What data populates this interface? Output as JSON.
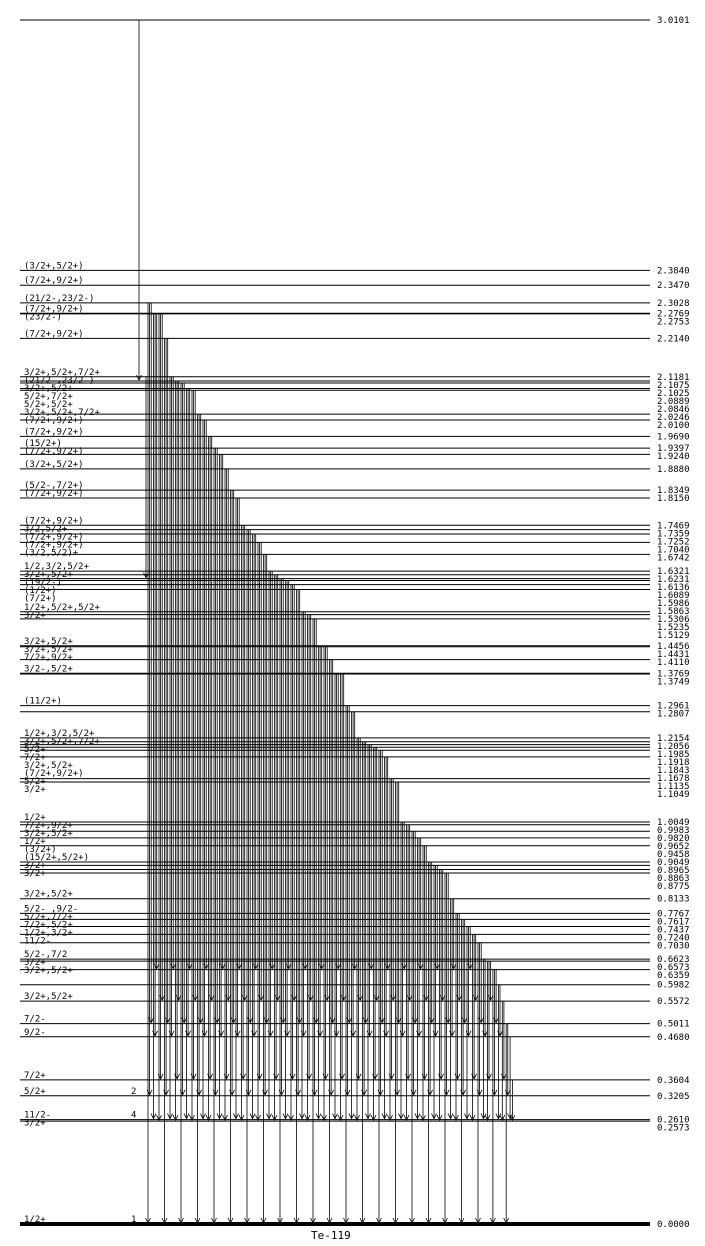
{
  "nucleus": "Te-119",
  "levels": [
    {
      "energy": "3.0101",
      "spin": ""
    },
    {
      "energy": "2.3840",
      "spin": "(3/2+,5/2+)"
    },
    {
      "energy": "2.3470",
      "spin": "(7/2+,9/2+)"
    },
    {
      "energy": "2.3028",
      "spin": "(21/2-,23/2-)"
    },
    {
      "energy": "2.2769",
      "spin": "(7/2+,9/2+)"
    },
    {
      "energy": "2.2753",
      "spin": "(23/2-)"
    },
    {
      "energy": "2.2140",
      "spin": "(7/2+,9/2+)"
    },
    {
      "energy": "2.1181",
      "spin": "3/2+,5/2+,7/2+"
    },
    {
      "energy": "2.1075",
      "spin": "(21/2-,23/2-)"
    },
    {
      "energy": "2.1025",
      "spin": "3/2+,5/2+"
    },
    {
      "energy": "2.0889",
      "spin": "5/2+,7/2+"
    },
    {
      "energy": "2.0846",
      "spin": "5/2+,5/2+"
    },
    {
      "energy": "2.0246",
      "spin": "3/2+,5/2+,7/2+"
    },
    {
      "energy": "2.0100",
      "spin": "(7/2+,9/2+)"
    },
    {
      "energy": "1.9690",
      "spin": "(7/2+,9/2+)"
    },
    {
      "energy": "1.9397",
      "spin": "(15/2+)"
    },
    {
      "energy": "1.9240",
      "spin": "(7/2+,9/2+)"
    },
    {
      "energy": "1.8880",
      "spin": "(3/2+,5/2+)"
    },
    {
      "energy": "1.8349",
      "spin": "(5/2-,7/2+)"
    },
    {
      "energy": "1.8150",
      "spin": "(7/2+,9/2+)"
    },
    {
      "energy": "1.7469",
      "spin": "(7/2+,9/2+)"
    },
    {
      "energy": "1.7359",
      "spin": "3/2,5/2+"
    },
    {
      "energy": "1.7252",
      "spin": "(7/2+,9/2+)"
    },
    {
      "energy": "1.7040",
      "spin": "(7/2+,9/2+)"
    },
    {
      "energy": "1.6742",
      "spin": "(3/2,5/2)+"
    },
    {
      "energy": "1.6321",
      "spin": "1/2,3/2,5/2+"
    },
    {
      "energy": "1.6231",
      "spin": "3/2+,5/2+"
    },
    {
      "energy": "1.6136",
      "spin": "(19/2-)"
    },
    {
      "energy": "1.6089",
      "spin": "(1/2+)"
    },
    {
      "energy": "1.5986",
      "spin": "(7/2+)"
    },
    {
      "energy": "1.5863",
      "spin": ""
    },
    {
      "energy": "1.5306",
      "spin": "1/2+,5/2+,5/2+"
    },
    {
      "energy": "1.5235",
      "spin": "3/2+"
    },
    {
      "energy": "1.5129",
      "spin": ""
    },
    {
      "energy": "1.4456",
      "spin": "3/2+,5/2+"
    },
    {
      "energy": "1.4431",
      "spin": "3/2+,5/2+"
    },
    {
      "energy": "1.4110",
      "spin": "7/2+,9/2+"
    },
    {
      "energy": "1.3769",
      "spin": "3/2-,5/2+"
    },
    {
      "energy": "1.3749",
      "spin": ""
    },
    {
      "energy": "1.2961",
      "spin": "(11/2+)"
    },
    {
      "energy": "1.2807",
      "spin": ""
    },
    {
      "energy": "1.2154",
      "spin": "1/2+,3/2,5/2+"
    },
    {
      "energy": "1.2056",
      "spin": "3/2+,5/2+,7/2+"
    },
    {
      "energy": "1.1985",
      "spin": "5/2+"
    },
    {
      "energy": "1.1918",
      "spin": "7/2+"
    },
    {
      "energy": "1.1843",
      "spin": "3/2+,5/2+"
    },
    {
      "energy": "1.1678",
      "spin": "(7/2+,9/2+)"
    },
    {
      "energy": "1.1135",
      "spin": "5/2+"
    },
    {
      "energy": "1.1049",
      "spin": "3/2+"
    },
    {
      "energy": "1.0049",
      "spin": "1/2+"
    },
    {
      "energy": "0.9983",
      "spin": "7/2+,9/2+"
    },
    {
      "energy": "0.9820",
      "spin": "3/2+,5/2+"
    },
    {
      "energy": "0.9652",
      "spin": "1/2+"
    },
    {
      "energy": "0.9458",
      "spin": "(3/2+)"
    },
    {
      "energy": "0.9049",
      "spin": "(15/2+,5/2+)"
    },
    {
      "energy": "0.8965",
      "spin": "3/2+"
    },
    {
      "energy": "0.8863",
      "spin": "3/2+"
    },
    {
      "energy": "0.8775",
      "spin": ""
    },
    {
      "energy": "0.8133",
      "spin": "3/2+,5/2+"
    },
    {
      "energy": "0.7767",
      "spin": "5/2- ,9/2-"
    },
    {
      "energy": "0.7617",
      "spin": "5/2+,7/2+"
    },
    {
      "energy": "0.7437",
      "spin": "7/2+,5/2+"
    },
    {
      "energy": "0.7240",
      "spin": "1/2+,3/2+"
    },
    {
      "energy": "0.7030",
      "spin": "11/2-"
    },
    {
      "energy": "0.6623",
      "spin": "5/2-,7/2"
    },
    {
      "energy": "0.6573",
      "spin": "3/2+"
    },
    {
      "energy": "0.6359",
      "spin": "3/2+,5/2+"
    },
    {
      "energy": "0.5982",
      "spin": ""
    },
    {
      "energy": "0.5572",
      "spin": "3/2+,5/2+"
    },
    {
      "energy": "0.5011",
      "spin": "7/2-"
    },
    {
      "energy": "0.4680",
      "spin": "9/2-"
    },
    {
      "energy": "0.3604",
      "spin": "7/2+"
    },
    {
      "energy": "0.3205",
      "spin": "5/2+"
    },
    {
      "energy": "0.2610",
      "spin": "11/2-"
    },
    {
      "energy": "0.2573",
      "spin": "3/2+"
    },
    {
      "energy": "0.0000",
      "spin": "1/2+"
    }
  ],
  "level_counts": [
    {
      "energy": "0.3205",
      "count": "2"
    },
    {
      "energy": "0.2610",
      "count": "4"
    },
    {
      "energy": "0.0000",
      "count": "1"
    }
  ]
}
